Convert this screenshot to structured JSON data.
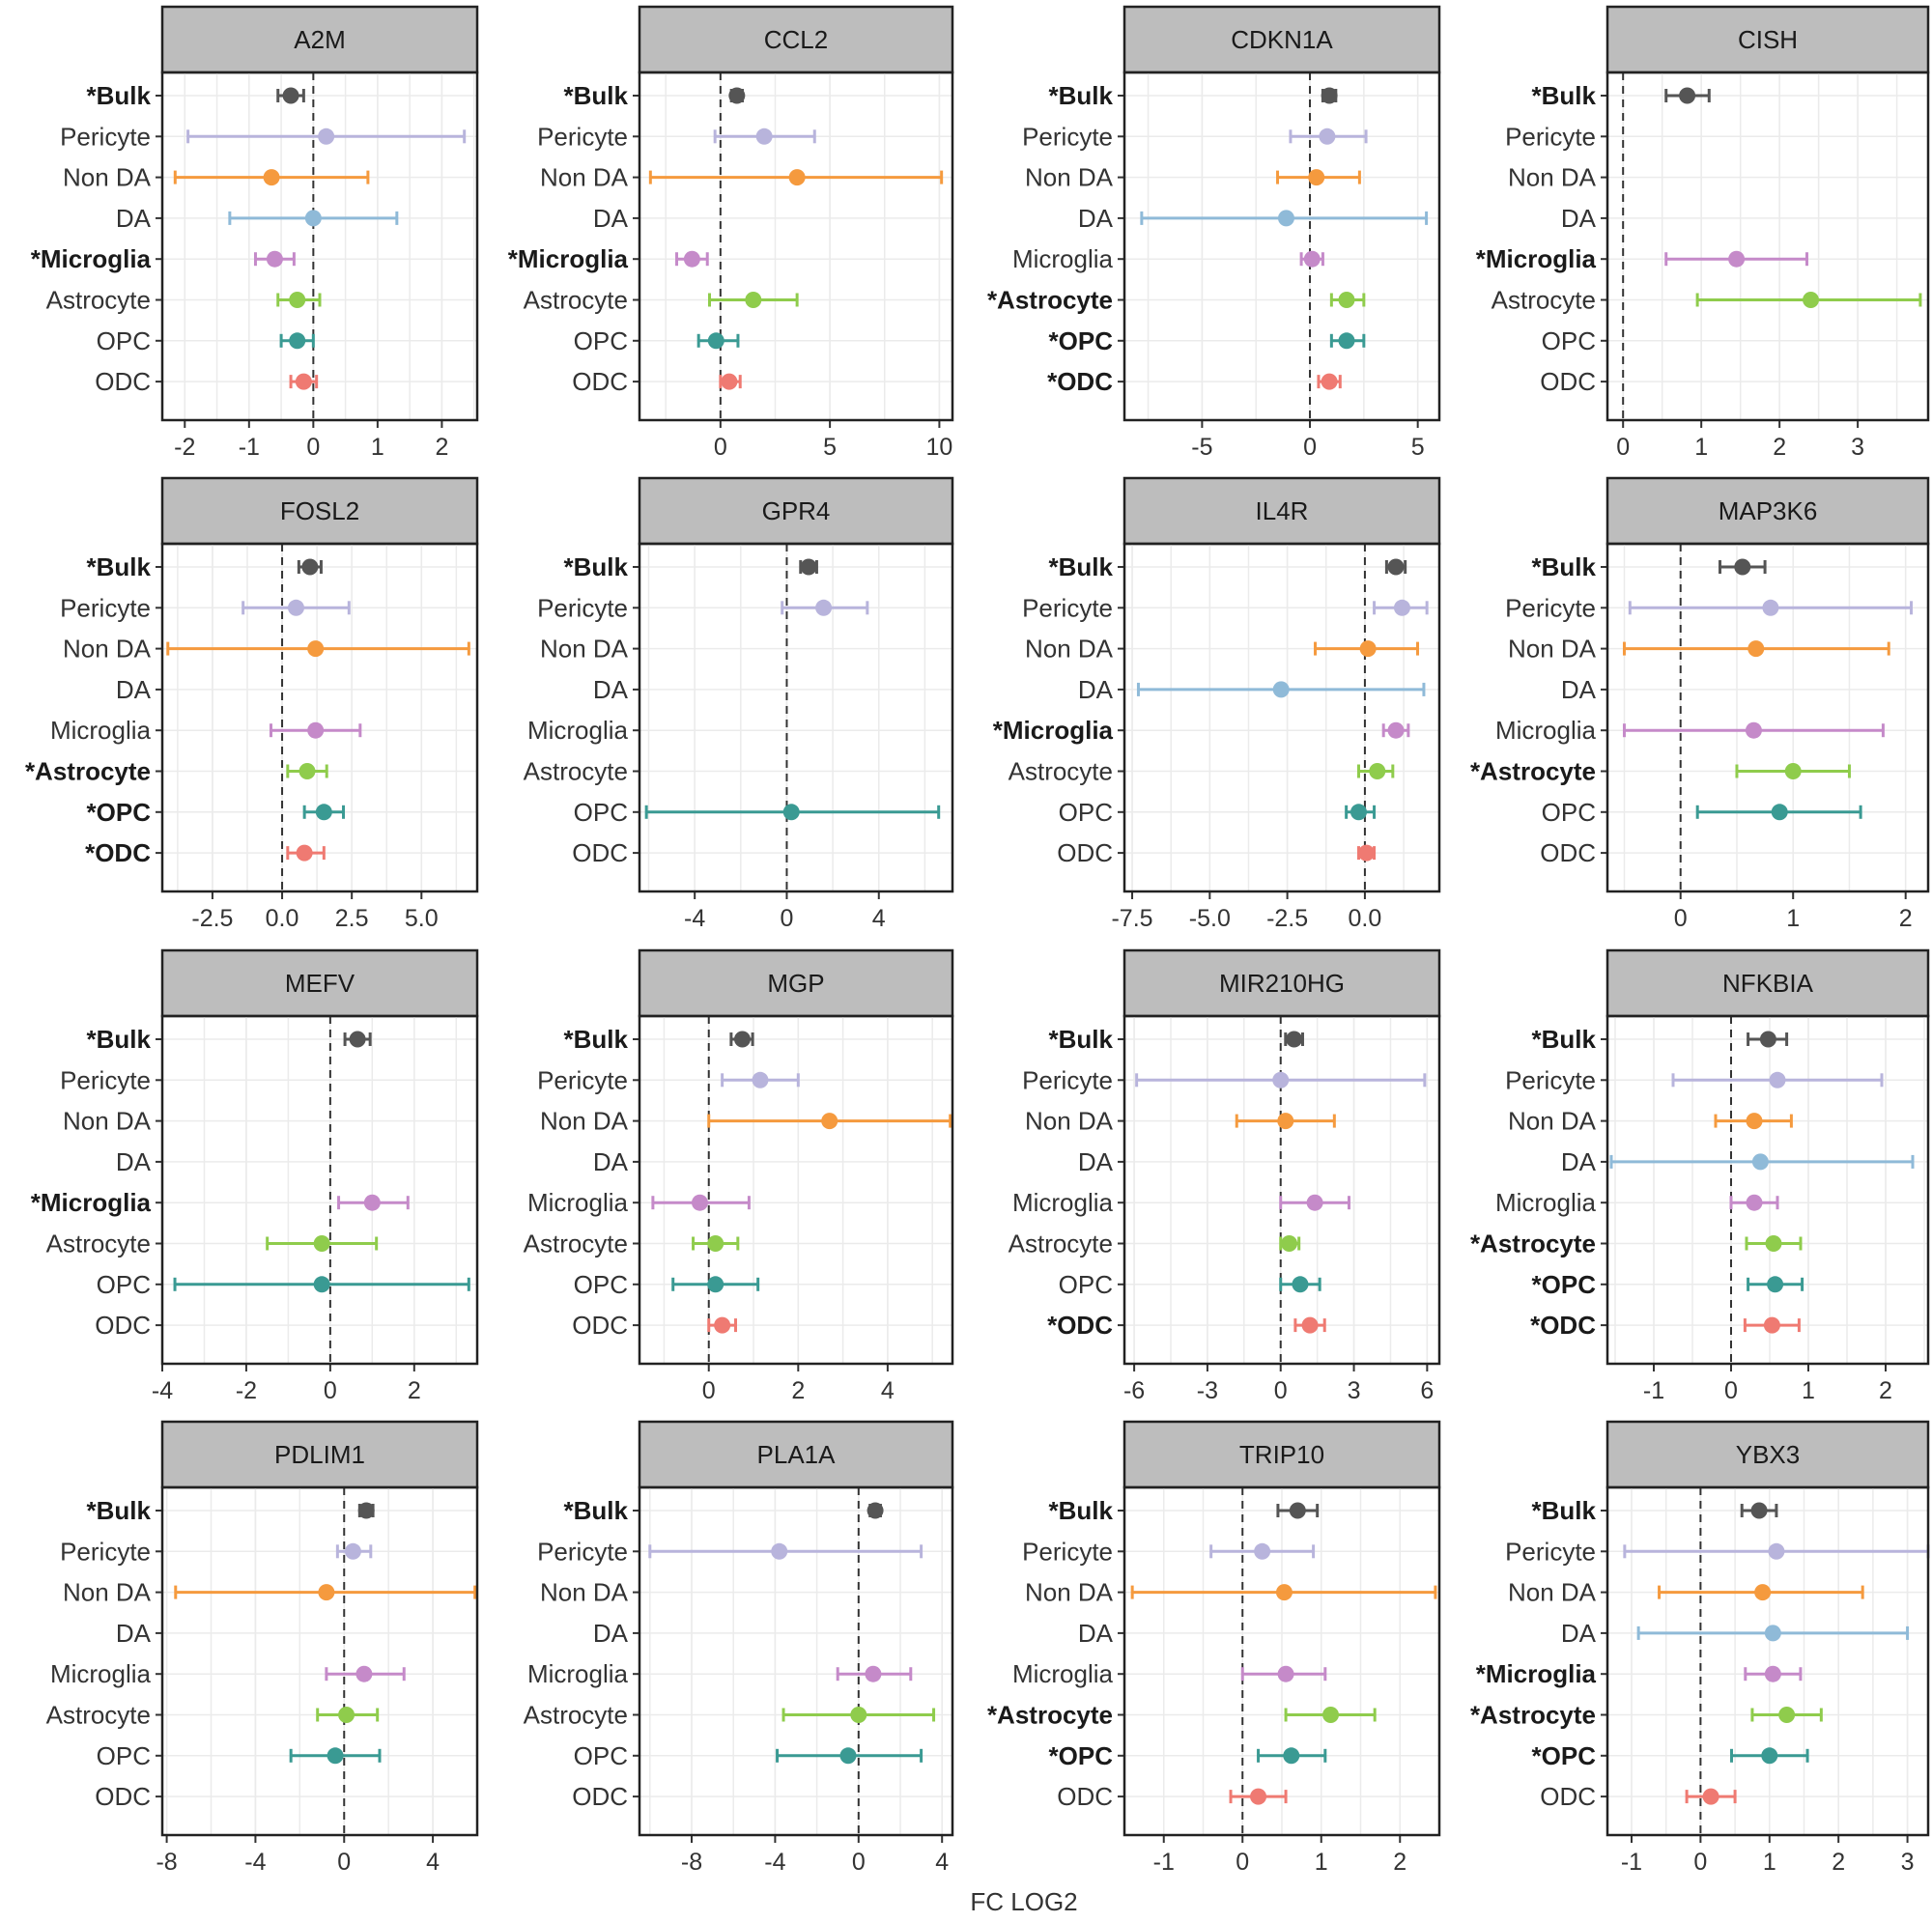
{
  "axis_title": "FC LOG2",
  "cell_types": [
    "Bulk",
    "Pericyte",
    "Non DA",
    "DA",
    "Microglia",
    "Astrocyte",
    "OPC",
    "ODC"
  ],
  "colors": {
    "Bulk": "#555555",
    "Pericyte": "#b8b4dc",
    "Non DA": "#f59a3e",
    "DA": "#8fbad8",
    "Microglia": "#c58ac9",
    "Astrocyte": "#8fcc4c",
    "OPC": "#3a9a93",
    "ODC": "#ef7a72"
  },
  "chart_data": [
    {
      "type": "scatter",
      "title": "A2M",
      "xlim": [
        -2.35,
        2.55
      ],
      "xticks": [
        -2,
        -1,
        0,
        1,
        2
      ],
      "xtick_labels": [
        "-2",
        "-1",
        "0",
        "1",
        "2"
      ],
      "bold": [
        "Bulk",
        "Microglia"
      ],
      "points": [
        {
          "cell": "Bulk",
          "x": -0.35,
          "lo": -0.55,
          "hi": -0.15
        },
        {
          "cell": "Pericyte",
          "x": 0.2,
          "lo": -1.95,
          "hi": 2.35
        },
        {
          "cell": "Non DA",
          "x": -0.65,
          "lo": -2.15,
          "hi": 0.85
        },
        {
          "cell": "DA",
          "x": 0.0,
          "lo": -1.3,
          "hi": 1.3
        },
        {
          "cell": "Microglia",
          "x": -0.6,
          "lo": -0.9,
          "hi": -0.3
        },
        {
          "cell": "Astrocyte",
          "x": -0.25,
          "lo": -0.55,
          "hi": 0.1
        },
        {
          "cell": "OPC",
          "x": -0.25,
          "lo": -0.5,
          "hi": 0.0
        },
        {
          "cell": "ODC",
          "x": -0.15,
          "lo": -0.35,
          "hi": 0.05
        }
      ]
    },
    {
      "type": "scatter",
      "title": "CCL2",
      "xlim": [
        -3.7,
        10.6
      ],
      "xticks": [
        0,
        5,
        10
      ],
      "xtick_labels": [
        "0",
        "5",
        "10"
      ],
      "bold": [
        "Bulk",
        "Microglia"
      ],
      "points": [
        {
          "cell": "Bulk",
          "x": 0.75,
          "lo": 0.5,
          "hi": 1.0
        },
        {
          "cell": "Pericyte",
          "x": 2.0,
          "lo": -0.25,
          "hi": 4.3
        },
        {
          "cell": "Non DA",
          "x": 3.5,
          "lo": -3.2,
          "hi": 10.1
        },
        {
          "cell": "Microglia",
          "x": -1.3,
          "lo": -2.0,
          "hi": -0.6
        },
        {
          "cell": "Astrocyte",
          "x": 1.5,
          "lo": -0.5,
          "hi": 3.5
        },
        {
          "cell": "OPC",
          "x": -0.2,
          "lo": -1.0,
          "hi": 0.8
        },
        {
          "cell": "ODC",
          "x": 0.4,
          "lo": 0.0,
          "hi": 0.9
        }
      ]
    },
    {
      "type": "scatter",
      "title": "CDKN1A",
      "xlim": [
        -8.6,
        6.0
      ],
      "xticks": [
        -5,
        0,
        5
      ],
      "xtick_labels": [
        "-5",
        "0",
        "5"
      ],
      "bold": [
        "Bulk",
        "Astrocyte",
        "OPC",
        "ODC"
      ],
      "points": [
        {
          "cell": "Bulk",
          "x": 0.9,
          "lo": 0.6,
          "hi": 1.2
        },
        {
          "cell": "Pericyte",
          "x": 0.8,
          "lo": -0.9,
          "hi": 2.6
        },
        {
          "cell": "Non DA",
          "x": 0.3,
          "lo": -1.5,
          "hi": 2.3
        },
        {
          "cell": "DA",
          "x": -1.1,
          "lo": -7.8,
          "hi": 5.4
        },
        {
          "cell": "Microglia",
          "x": 0.1,
          "lo": -0.4,
          "hi": 0.6
        },
        {
          "cell": "Astrocyte",
          "x": 1.7,
          "lo": 1.0,
          "hi": 2.5
        },
        {
          "cell": "OPC",
          "x": 1.7,
          "lo": 1.0,
          "hi": 2.5
        },
        {
          "cell": "ODC",
          "x": 0.9,
          "lo": 0.4,
          "hi": 1.4
        }
      ]
    },
    {
      "type": "scatter",
      "title": "CISH",
      "xlim": [
        -0.2,
        3.9
      ],
      "xticks": [
        0,
        1,
        2,
        3
      ],
      "xtick_labels": [
        "0",
        "1",
        "2",
        "3"
      ],
      "bold": [
        "Bulk",
        "Microglia"
      ],
      "points": [
        {
          "cell": "Bulk",
          "x": 0.82,
          "lo": 0.55,
          "hi": 1.1
        },
        {
          "cell": "Microglia",
          "x": 1.45,
          "lo": 0.55,
          "hi": 2.35
        },
        {
          "cell": "Astrocyte",
          "x": 2.4,
          "lo": 0.95,
          "hi": 3.8
        }
      ]
    },
    {
      "type": "scatter",
      "title": "FOSL2",
      "xlim": [
        -4.3,
        7.0
      ],
      "xticks": [
        -2.5,
        0,
        2.5,
        5
      ],
      "xtick_labels": [
        "-2.5",
        "0.0",
        "2.5",
        "5.0"
      ],
      "bold": [
        "Bulk",
        "Astrocyte",
        "OPC",
        "ODC"
      ],
      "points": [
        {
          "cell": "Bulk",
          "x": 1.0,
          "lo": 0.6,
          "hi": 1.4
        },
        {
          "cell": "Pericyte",
          "x": 0.5,
          "lo": -1.4,
          "hi": 2.4
        },
        {
          "cell": "Non DA",
          "x": 1.2,
          "lo": -4.1,
          "hi": 6.7
        },
        {
          "cell": "Microglia",
          "x": 1.2,
          "lo": -0.4,
          "hi": 2.8
        },
        {
          "cell": "Astrocyte",
          "x": 0.9,
          "lo": 0.2,
          "hi": 1.6
        },
        {
          "cell": "OPC",
          "x": 1.5,
          "lo": 0.8,
          "hi": 2.2
        },
        {
          "cell": "ODC",
          "x": 0.8,
          "lo": 0.2,
          "hi": 1.5
        }
      ]
    },
    {
      "type": "scatter",
      "title": "GPR4",
      "xlim": [
        -6.4,
        7.2
      ],
      "xticks": [
        -4,
        0,
        4
      ],
      "xtick_labels": [
        "-4",
        "0",
        "4"
      ],
      "bold": [
        "Bulk"
      ],
      "points": [
        {
          "cell": "Bulk",
          "x": 0.95,
          "lo": 0.6,
          "hi": 1.3
        },
        {
          "cell": "Pericyte",
          "x": 1.6,
          "lo": -0.2,
          "hi": 3.5
        },
        {
          "cell": "OPC",
          "x": 0.2,
          "lo": -6.1,
          "hi": 6.6
        }
      ]
    },
    {
      "type": "scatter",
      "title": "IL4R",
      "xlim": [
        -7.75,
        2.4
      ],
      "xticks": [
        -7.5,
        -5,
        -2.5,
        0
      ],
      "xtick_labels": [
        "-7.5",
        "-5.0",
        "-2.5",
        "0.0"
      ],
      "bold": [
        "Bulk",
        "Microglia"
      ],
      "points": [
        {
          "cell": "Bulk",
          "x": 1.0,
          "lo": 0.7,
          "hi": 1.3
        },
        {
          "cell": "Pericyte",
          "x": 1.2,
          "lo": 0.3,
          "hi": 2.0
        },
        {
          "cell": "Non DA",
          "x": 0.1,
          "lo": -1.6,
          "hi": 1.7
        },
        {
          "cell": "DA",
          "x": -2.7,
          "lo": -7.3,
          "hi": 1.9
        },
        {
          "cell": "Microglia",
          "x": 1.0,
          "lo": 0.6,
          "hi": 1.4
        },
        {
          "cell": "Astrocyte",
          "x": 0.4,
          "lo": -0.2,
          "hi": 0.9
        },
        {
          "cell": "OPC",
          "x": -0.2,
          "lo": -0.6,
          "hi": 0.3
        },
        {
          "cell": "ODC",
          "x": 0.05,
          "lo": -0.2,
          "hi": 0.3
        }
      ]
    },
    {
      "type": "scatter",
      "title": "MAP3K6",
      "xlim": [
        -0.65,
        2.2
      ],
      "xticks": [
        0,
        1,
        2
      ],
      "xtick_labels": [
        "0",
        "1",
        "2"
      ],
      "bold": [
        "Bulk",
        "Astrocyte"
      ],
      "points": [
        {
          "cell": "Bulk",
          "x": 0.55,
          "lo": 0.35,
          "hi": 0.75
        },
        {
          "cell": "Pericyte",
          "x": 0.8,
          "lo": -0.45,
          "hi": 2.05
        },
        {
          "cell": "Non DA",
          "x": 0.67,
          "lo": -0.5,
          "hi": 1.85
        },
        {
          "cell": "Microglia",
          "x": 0.65,
          "lo": -0.5,
          "hi": 1.8
        },
        {
          "cell": "Astrocyte",
          "x": 1.0,
          "lo": 0.5,
          "hi": 1.5
        },
        {
          "cell": "OPC",
          "x": 0.88,
          "lo": 0.15,
          "hi": 1.6
        }
      ]
    },
    {
      "type": "scatter",
      "title": "MEFV",
      "xlim": [
        -4.0,
        3.5
      ],
      "xticks": [
        -4,
        -2,
        0,
        2
      ],
      "xtick_labels": [
        "-4",
        "-2",
        "0",
        "2"
      ],
      "bold": [
        "Bulk",
        "Microglia"
      ],
      "points": [
        {
          "cell": "Bulk",
          "x": 0.65,
          "lo": 0.35,
          "hi": 0.95
        },
        {
          "cell": "Microglia",
          "x": 1.0,
          "lo": 0.2,
          "hi": 1.85
        },
        {
          "cell": "Astrocyte",
          "x": -0.2,
          "lo": -1.5,
          "hi": 1.1
        },
        {
          "cell": "OPC",
          "x": -0.2,
          "lo": -3.7,
          "hi": 3.3
        }
      ]
    },
    {
      "type": "scatter",
      "title": "MGP",
      "xlim": [
        -1.55,
        5.45
      ],
      "xticks": [
        0,
        2,
        4
      ],
      "xtick_labels": [
        "0",
        "2",
        "4"
      ],
      "bold": [
        "Bulk"
      ],
      "points": [
        {
          "cell": "Bulk",
          "x": 0.75,
          "lo": 0.5,
          "hi": 0.98
        },
        {
          "cell": "Pericyte",
          "x": 1.15,
          "lo": 0.3,
          "hi": 2.0
        },
        {
          "cell": "Non DA",
          "x": 2.7,
          "lo": 0.0,
          "hi": 5.4
        },
        {
          "cell": "Microglia",
          "x": -0.2,
          "lo": -1.25,
          "hi": 0.9
        },
        {
          "cell": "Astrocyte",
          "x": 0.15,
          "lo": -0.35,
          "hi": 0.65
        },
        {
          "cell": "OPC",
          "x": 0.15,
          "lo": -0.8,
          "hi": 1.1
        },
        {
          "cell": "ODC",
          "x": 0.3,
          "lo": 0.0,
          "hi": 0.6
        }
      ]
    },
    {
      "type": "scatter",
      "title": "MIR210HG",
      "xlim": [
        -6.4,
        6.5
      ],
      "xticks": [
        -6,
        -3,
        0,
        3,
        6
      ],
      "xtick_labels": [
        "-6",
        "-3",
        "0",
        "3",
        "6"
      ],
      "bold": [
        "Bulk",
        "ODC"
      ],
      "points": [
        {
          "cell": "Bulk",
          "x": 0.55,
          "lo": 0.2,
          "hi": 0.9
        },
        {
          "cell": "Pericyte",
          "x": 0.0,
          "lo": -5.9,
          "hi": 5.9
        },
        {
          "cell": "Non DA",
          "x": 0.2,
          "lo": -1.8,
          "hi": 2.2
        },
        {
          "cell": "Microglia",
          "x": 1.4,
          "lo": 0.0,
          "hi": 2.8
        },
        {
          "cell": "Astrocyte",
          "x": 0.35,
          "lo": 0.0,
          "hi": 0.75
        },
        {
          "cell": "OPC",
          "x": 0.8,
          "lo": 0.0,
          "hi": 1.6
        },
        {
          "cell": "ODC",
          "x": 1.2,
          "lo": 0.6,
          "hi": 1.8
        }
      ]
    },
    {
      "type": "scatter",
      "title": "NFKBIA",
      "xlim": [
        -1.6,
        2.55
      ],
      "xticks": [
        -1,
        0,
        1,
        2
      ],
      "xtick_labels": [
        "-1",
        "0",
        "1",
        "2"
      ],
      "bold": [
        "Bulk",
        "Astrocyte",
        "OPC",
        "ODC"
      ],
      "points": [
        {
          "cell": "Bulk",
          "x": 0.48,
          "lo": 0.22,
          "hi": 0.72
        },
        {
          "cell": "Pericyte",
          "x": 0.6,
          "lo": -0.75,
          "hi": 1.95
        },
        {
          "cell": "Non DA",
          "x": 0.3,
          "lo": -0.2,
          "hi": 0.78
        },
        {
          "cell": "DA",
          "x": 0.38,
          "lo": -1.55,
          "hi": 2.35
        },
        {
          "cell": "Microglia",
          "x": 0.3,
          "lo": 0.0,
          "hi": 0.6
        },
        {
          "cell": "Astrocyte",
          "x": 0.55,
          "lo": 0.2,
          "hi": 0.9
        },
        {
          "cell": "OPC",
          "x": 0.57,
          "lo": 0.22,
          "hi": 0.92
        },
        {
          "cell": "ODC",
          "x": 0.53,
          "lo": 0.18,
          "hi": 0.88
        }
      ]
    },
    {
      "type": "scatter",
      "title": "PDLIM1",
      "xlim": [
        -8.2,
        6.0
      ],
      "xticks": [
        -8,
        -4,
        0,
        4
      ],
      "xtick_labels": [
        "-8",
        "-4",
        "0",
        "4"
      ],
      "bold": [
        "Bulk"
      ],
      "points": [
        {
          "cell": "Bulk",
          "x": 1.0,
          "lo": 0.7,
          "hi": 1.3
        },
        {
          "cell": "Pericyte",
          "x": 0.4,
          "lo": -0.3,
          "hi": 1.2
        },
        {
          "cell": "Non DA",
          "x": -0.8,
          "lo": -7.6,
          "hi": 5.9
        },
        {
          "cell": "Microglia",
          "x": 0.9,
          "lo": -0.8,
          "hi": 2.7
        },
        {
          "cell": "Astrocyte",
          "x": 0.1,
          "lo": -1.2,
          "hi": 1.5
        },
        {
          "cell": "OPC",
          "x": -0.4,
          "lo": -2.4,
          "hi": 1.6
        }
      ]
    },
    {
      "type": "scatter",
      "title": "PLA1A",
      "xlim": [
        -10.5,
        4.5
      ],
      "xticks": [
        -8,
        -4,
        0,
        4
      ],
      "xtick_labels": [
        "-8",
        "-4",
        "0",
        "4"
      ],
      "bold": [
        "Bulk"
      ],
      "points": [
        {
          "cell": "Bulk",
          "x": 0.8,
          "lo": 0.55,
          "hi": 1.05
        },
        {
          "cell": "Pericyte",
          "x": -3.8,
          "lo": -10.0,
          "hi": 3.0
        },
        {
          "cell": "Microglia",
          "x": 0.7,
          "lo": -1.0,
          "hi": 2.5
        },
        {
          "cell": "Astrocyte",
          "x": 0.0,
          "lo": -3.6,
          "hi": 3.6
        },
        {
          "cell": "OPC",
          "x": -0.5,
          "lo": -3.9,
          "hi": 3.0
        }
      ]
    },
    {
      "type": "scatter",
      "title": "TRIP10",
      "xlim": [
        -1.5,
        2.5
      ],
      "xticks": [
        -1,
        0,
        1,
        2
      ],
      "xtick_labels": [
        "-1",
        "0",
        "1",
        "2"
      ],
      "bold": [
        "Bulk",
        "Astrocyte",
        "OPC"
      ],
      "points": [
        {
          "cell": "Bulk",
          "x": 0.7,
          "lo": 0.45,
          "hi": 0.95
        },
        {
          "cell": "Pericyte",
          "x": 0.25,
          "lo": -0.4,
          "hi": 0.9
        },
        {
          "cell": "Non DA",
          "x": 0.53,
          "lo": -1.4,
          "hi": 2.45
        },
        {
          "cell": "Microglia",
          "x": 0.55,
          "lo": 0.0,
          "hi": 1.05
        },
        {
          "cell": "Astrocyte",
          "x": 1.12,
          "lo": 0.55,
          "hi": 1.68
        },
        {
          "cell": "OPC",
          "x": 0.62,
          "lo": 0.2,
          "hi": 1.05
        },
        {
          "cell": "ODC",
          "x": 0.2,
          "lo": -0.15,
          "hi": 0.55
        }
      ]
    },
    {
      "type": "scatter",
      "title": "YBX3",
      "xlim": [
        -1.35,
        3.3
      ],
      "xticks": [
        -1,
        0,
        1,
        2,
        3
      ],
      "xtick_labels": [
        "-1",
        "0",
        "1",
        "2",
        "3"
      ],
      "bold": [
        "Bulk",
        "Microglia",
        "Astrocyte",
        "OPC"
      ],
      "points": [
        {
          "cell": "Bulk",
          "x": 0.85,
          "lo": 0.6,
          "hi": 1.1
        },
        {
          "cell": "Pericyte",
          "x": 1.1,
          "lo": -1.1,
          "hi": 3.3
        },
        {
          "cell": "Non DA",
          "x": 0.9,
          "lo": -0.6,
          "hi": 2.35
        },
        {
          "cell": "DA",
          "x": 1.05,
          "lo": -0.9,
          "hi": 3.0
        },
        {
          "cell": "Microglia",
          "x": 1.05,
          "lo": 0.65,
          "hi": 1.45
        },
        {
          "cell": "Astrocyte",
          "x": 1.25,
          "lo": 0.75,
          "hi": 1.75
        },
        {
          "cell": "OPC",
          "x": 1.0,
          "lo": 0.45,
          "hi": 1.55
        },
        {
          "cell": "ODC",
          "x": 0.15,
          "lo": -0.2,
          "hi": 0.5
        }
      ]
    }
  ]
}
